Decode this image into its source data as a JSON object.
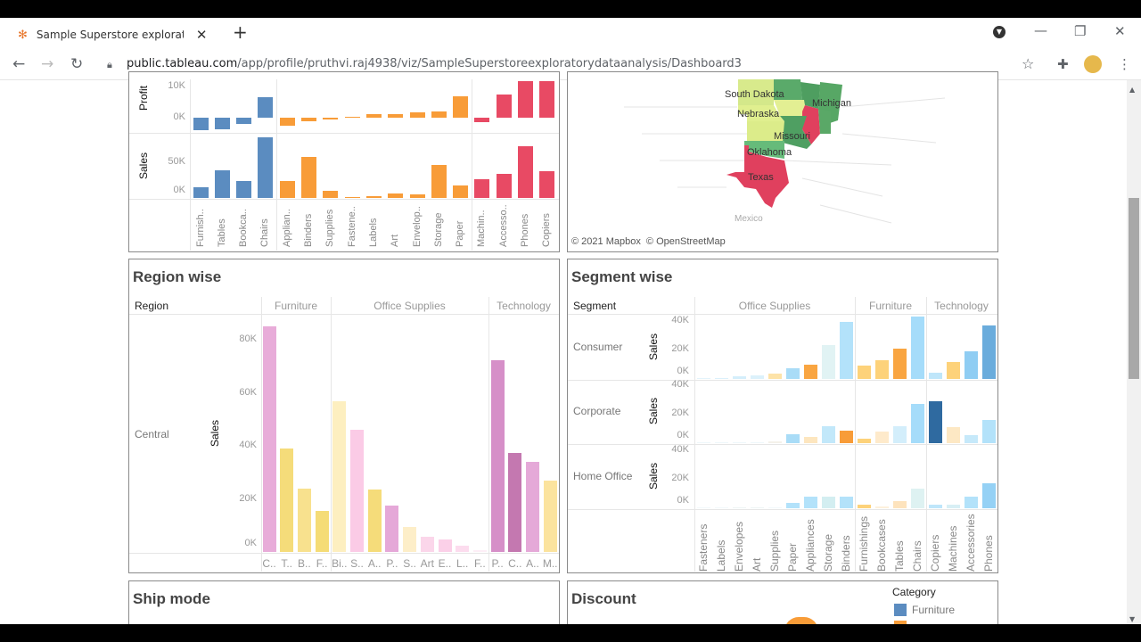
{
  "browser": {
    "tab_title": "Sample Superstore exploratory d",
    "url_host": "public.tableau.com",
    "url_path": "/app/profile/pruthvi.raj4938/viz/SampleSuperstoreexploratorydataanalysis/Dashboard3"
  },
  "colors": {
    "furniture": "#5b8cc0",
    "office_supplies": "#f89c38",
    "technology": "#e84a64"
  },
  "chart_data": [
    {
      "type": "bar",
      "id": "category",
      "categories": [
        "Furnish..",
        "Tables",
        "Bookca..",
        "Chairs",
        "Applian..",
        "Binders",
        "Supplies",
        "Fastene..",
        "Labels",
        "Art",
        "Envelop..",
        "Storage",
        "Paper",
        "Machin..",
        "Accesso..",
        "Phones",
        "Copiers"
      ],
      "groups": [
        "Furniture",
        "Furniture",
        "Furniture",
        "Furniture",
        "Office Supplies",
        "Office Supplies",
        "Office Supplies",
        "Office Supplies",
        "Office Supplies",
        "Office Supplies",
        "Office Supplies",
        "Office Supplies",
        "Office Supplies",
        "Technology",
        "Technology",
        "Technology",
        "Technology"
      ],
      "series": [
        {
          "name": "Profit",
          "values": [
            -3.9,
            -3.6,
            -1.9,
            6.6,
            -2.6,
            -1.0,
            -0.7,
            0.2,
            1.1,
            1.2,
            1.8,
            2.0,
            6.9,
            -1.5,
            7.3,
            12.3,
            15.6
          ],
          "ticks": [
            "0K",
            "10K"
          ]
        },
        {
          "name": "Sales",
          "values": [
            15.3,
            39.0,
            24.0,
            85.0,
            23.6,
            56.9,
            9.5,
            0.8,
            2.5,
            5.8,
            4.6,
            45.9,
            17.5,
            26.8,
            33.9,
            72.4,
            37.3
          ],
          "ticks": [
            "0K",
            "50K"
          ]
        }
      ],
      "unit": "K"
    },
    {
      "type": "bar",
      "id": "region",
      "title": "Region wise",
      "row_header": "Region",
      "row": "Central",
      "ylabel": "Sales",
      "group_headers": [
        "Furniture",
        "Office Supplies",
        "Technology"
      ],
      "categories": [
        "C..",
        "T..",
        "B..",
        "F..",
        "Bi..",
        "S..",
        "A..",
        "P..",
        "S..",
        "Art",
        "E..",
        "L..",
        "F..",
        "P..",
        "C..",
        "A..",
        "M.."
      ],
      "values": [
        85.0,
        39.0,
        24.0,
        15.3,
        56.9,
        45.9,
        23.6,
        17.5,
        9.5,
        5.8,
        4.6,
        2.5,
        0.8,
        72.4,
        37.3,
        33.9,
        26.8
      ],
      "colors": [
        "#e8acd9",
        "#f5dc7a",
        "#f8e18e",
        "#f5dc76",
        "#fdefc0",
        "#fbcbe6",
        "#f5dc7a",
        "#e5a8d8",
        "#fdeec8",
        "#fbd6ea",
        "#fbd0e8",
        "#fcdcee",
        "#fdeef6",
        "#d68fc8",
        "#c478b0",
        "#e5a9d8",
        "#fbe39e"
      ],
      "ticks": [
        "0K",
        "20K",
        "40K",
        "60K",
        "80K"
      ],
      "ylim": [
        0,
        90
      ]
    },
    {
      "type": "bar",
      "id": "segment",
      "title": "Segment wise",
      "row_header": "Segment",
      "ylabel": "Sales",
      "group_headers": [
        "Office Supplies",
        "Furniture",
        "Technology"
      ],
      "categories": [
        "Fasteners",
        "Labels",
        "Envelopes",
        "Art",
        "Supplies",
        "Paper",
        "Appliances",
        "Storage",
        "Binders",
        "Furnishings",
        "Bookcases",
        "Tables",
        "Chairs",
        "Copiers",
        "Machines",
        "Accessories",
        "Phones"
      ],
      "ticks": [
        "0K",
        "20K",
        "40K"
      ],
      "rows": [
        {
          "name": "Consumer",
          "values": [
            0.3,
            0.5,
            2,
            2.5,
            4,
            7.5,
            10,
            24,
            40,
            9.5,
            13,
            21,
            44,
            4.5,
            12,
            19.5,
            37.5
          ],
          "colors": [
            "#e3f3fb",
            "#dbf0fb",
            "#d4eefb",
            "#dcf1fb",
            "#fde3a8",
            "#a9dcf7",
            "#f9a541",
            "#e1f3f4",
            "#b3e2fa",
            "#fdd27a",
            "#fdd27a",
            "#f9a541",
            "#a5dcfa",
            "#bfe6fa",
            "#fdd27a",
            "#8fcdf3",
            "#6aacdc"
          ]
        },
        {
          "name": "Corporate",
          "values": [
            0.2,
            0.3,
            0.3,
            0.3,
            1.5,
            6.5,
            4.5,
            12,
            9,
            3,
            8,
            12,
            27.5,
            29.5,
            11,
            5.5,
            16
          ],
          "colors": [
            "#eef7fb",
            "#eef7fb",
            "#eef7fb",
            "#eef7fb",
            "#f4f1ea",
            "#a9dcf7",
            "#fde6bf",
            "#c2e8fa",
            "#f89c38",
            "#fdd27a",
            "#feeacb",
            "#d3eefb",
            "#a5dcfa",
            "#2f6aa0",
            "#fde8c4",
            "#c6e9fa",
            "#b3e2fa"
          ]
        },
        {
          "name": "Home Office",
          "values": [
            0.1,
            0.1,
            0.5,
            0.5,
            0.1,
            4,
            8,
            8,
            8,
            2.5,
            1.5,
            5,
            14,
            2.5,
            2.5,
            8,
            17.5
          ],
          "colors": [
            "#f2f8fb",
            "#f2f8fb",
            "#eef5f4",
            "#eef5f4",
            "#f2f8fb",
            "#b3e2fa",
            "#b3e2fa",
            "#d3eef1",
            "#b3e2fa",
            "#fdd27a",
            "#fdf1dc",
            "#fde3bd",
            "#def2f2",
            "#bfe6fa",
            "#d8eff5",
            "#b3e2fa",
            "#95d1f5"
          ]
        }
      ],
      "ylim": [
        0,
        45
      ]
    }
  ],
  "map": {
    "labels": [
      "South Dakota",
      "Nebraska",
      "Missouri",
      "Michigan",
      "Oklahoma",
      "Texas",
      "Mexico"
    ],
    "attribution": "© 2021 Mapbox  © OpenStreetMap"
  },
  "ship_mode": {
    "title": "Ship mode"
  },
  "discount": {
    "title": "Discount",
    "legend_title": "Category",
    "legend_items": [
      "Furniture"
    ]
  }
}
